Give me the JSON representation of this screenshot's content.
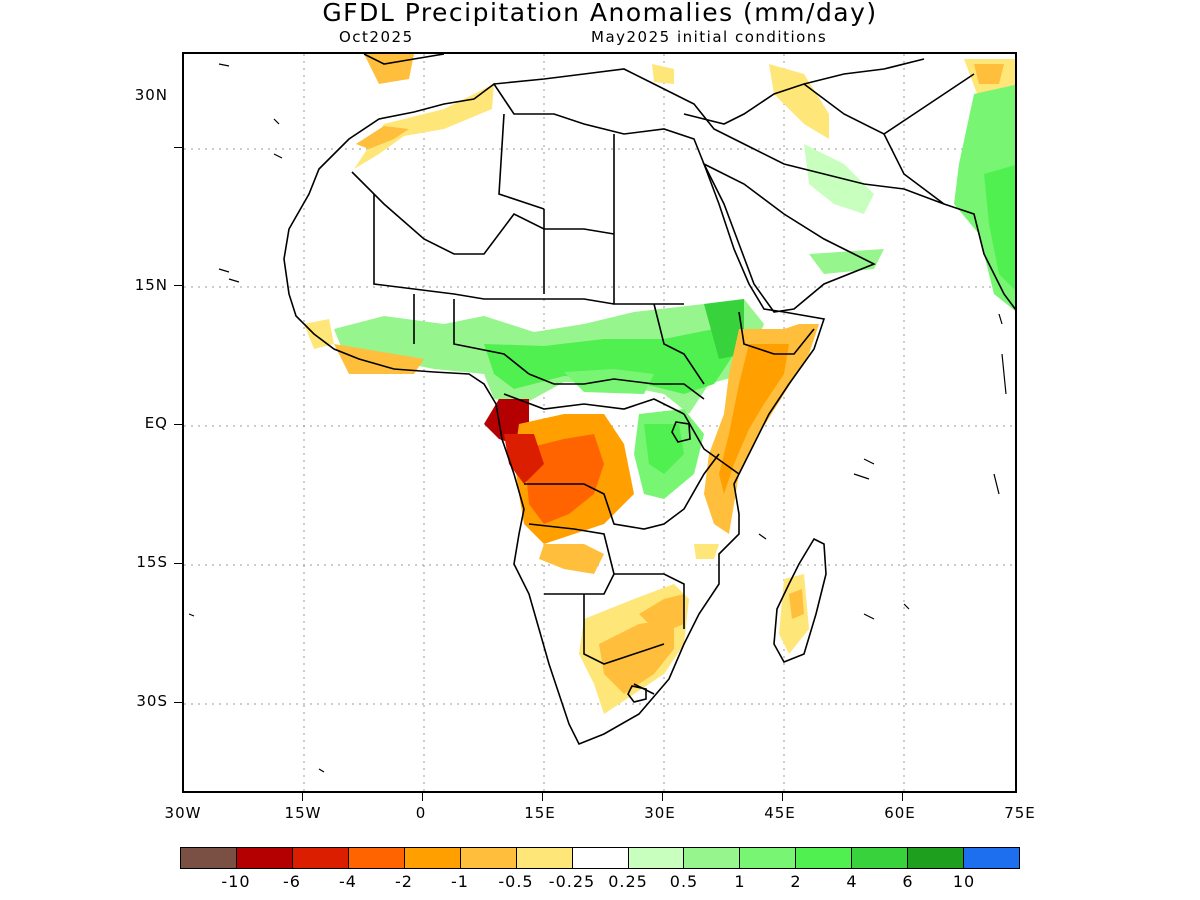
{
  "title": "GFDL Precipitation Anomalies (mm/day)",
  "subtitle_left": "Oct2025",
  "subtitle_right": "May2025 initial conditions",
  "lat_labels": [
    "30N",
    "15N",
    "EQ",
    "15S",
    "30S"
  ],
  "lon_labels": [
    "30W",
    "15W",
    "0",
    "15E",
    "30E",
    "45E",
    "60E",
    "75E"
  ],
  "legend": {
    "colors": [
      "#7a5044",
      "#b40000",
      "#dc1e00",
      "#ff6400",
      "#ffa000",
      "#ffbe3c",
      "#ffe678",
      "#ffffff",
      "#c8ffbe",
      "#96f58c",
      "#78f573",
      "#50f050",
      "#37d23c",
      "#1ea01e",
      "#1e6ef0"
    ],
    "labels": [
      "-10",
      "-6",
      "-4",
      "-2",
      "-1",
      "-0.5",
      "-0.25",
      "0.25",
      "0.5",
      "1",
      "2",
      "4",
      "6",
      "10"
    ]
  },
  "map": {
    "region": "Africa",
    "lon_range": [
      -30,
      75
    ],
    "lat_range": [
      -40,
      40
    ]
  }
}
